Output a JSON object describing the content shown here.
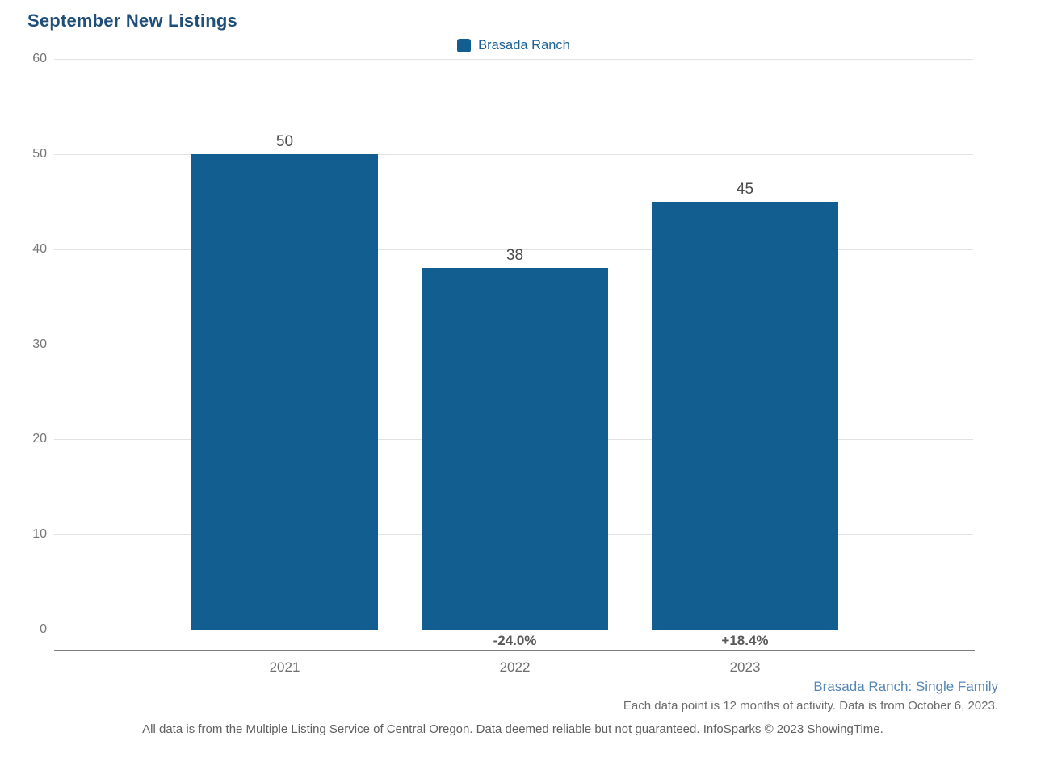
{
  "page": {
    "title": "September New Listings"
  },
  "legend": {
    "label": "Brasada Ranch",
    "swatch_color": "#135e90"
  },
  "chart_data": {
    "type": "bar",
    "title": "September New Listings",
    "series_name": "Brasada Ranch",
    "categories": [
      "2021",
      "2022",
      "2023"
    ],
    "values": [
      50,
      38,
      45
    ],
    "bar_labels": [
      "50",
      "38",
      "45"
    ],
    "pct_change_labels": [
      "",
      "-24.0%",
      "+18.4%"
    ],
    "ylim": [
      0,
      60
    ],
    "yticks": [
      0,
      10,
      20,
      30,
      40,
      50,
      60
    ],
    "grid": "horizontal",
    "legend_position": "top-center",
    "bar_color": "#135e90",
    "xlabel": "",
    "ylabel": ""
  },
  "footer": {
    "series_scope": "Brasada Ranch: Single Family",
    "data_note": "Each data point is 12 months of activity. Data is from October 6, 2023.",
    "disclaimer": "All data is from the Multiple Listing Service of Central Oregon. Data deemed reliable but not guaranteed. InfoSparks © 2023 ShowingTime."
  }
}
